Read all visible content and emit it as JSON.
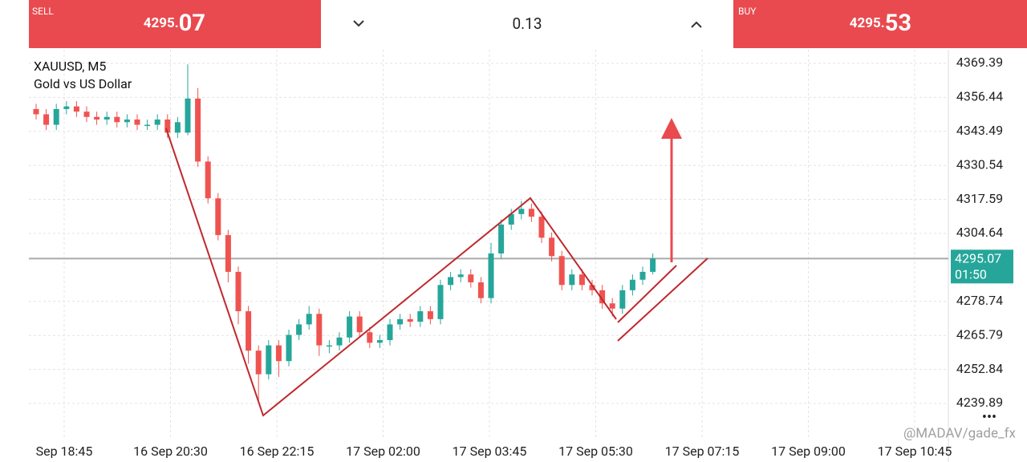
{
  "header": {
    "sell": {
      "label": "SELL",
      "price_small": "4295.",
      "price_big": "07"
    },
    "volume": "0.13",
    "buy": {
      "label": "BUY",
      "price_small": "4295.",
      "price_big": "53"
    }
  },
  "chart_data": {
    "type": "candlestick",
    "title": "XAUUSD, M5",
    "subtitle": "Gold vs US Dollar",
    "xlabels": [
      "Sep 18:45",
      "16 Sep 20:30",
      "16 Sep 22:15",
      "17 Sep 02:00",
      "17 Sep 03:45",
      "17 Sep 05:30",
      "17 Sep 07:15",
      "17 Sep 09:00",
      "17 Sep 10:45"
    ],
    "up_color": "#26a69a",
    "down_color": "#ef5350",
    "grid": true,
    "ylim": [
      4227.06,
      4374.58
    ],
    "yticks": [
      4369.39,
      4356.44,
      4343.49,
      4330.54,
      4317.59,
      4304.64,
      4278.74,
      4265.79,
      4252.84,
      4239.89
    ],
    "price_line": {
      "value": 4295.07,
      "label": "4295.07",
      "timer": "01:50"
    },
    "open": [
      4352,
      4350,
      4346,
      4352,
      4353,
      4351,
      4349,
      4348,
      4349,
      4347,
      4348,
      4346,
      4346,
      4348,
      4343,
      4343,
      4356,
      4332,
      4318,
      4304,
      4290,
      4275,
      4260,
      4251,
      4262,
      4256,
      4266,
      4270,
      4274,
      4262,
      4262,
      4265,
      4273,
      4267,
      4263,
      4264,
      4270,
      4272,
      4271,
      4275,
      4272,
      4285,
      4288,
      4289,
      4286,
      4280,
      4297,
      4308,
      4312,
      4314,
      4311,
      4303,
      4296,
      4285,
      4289,
      4285,
      4283,
      4278,
      4276,
      4283,
      4287,
      4290
    ],
    "high": [
      4354,
      4352,
      4354,
      4355,
      4355,
      4353,
      4351,
      4351,
      4351,
      4350,
      4350,
      4348,
      4350,
      4350,
      4349,
      4369,
      4360,
      4334,
      4320,
      4306,
      4292,
      4277,
      4262,
      4264,
      4264,
      4268,
      4272,
      4277,
      4276,
      4264,
      4267,
      4275,
      4275,
      4269,
      4266,
      4272,
      4274,
      4274,
      4277,
      4277,
      4287,
      4290,
      4291,
      4291,
      4288,
      4301,
      4310,
      4314,
      4317,
      4316,
      4313,
      4305,
      4298,
      4291,
      4291,
      4287,
      4285,
      4280,
      4285,
      4289,
      4292,
      4297
    ],
    "low": [
      4348,
      4344,
      4344,
      4350,
      4349,
      4347,
      4346,
      4346,
      4345,
      4345,
      4344,
      4344,
      4344,
      4341,
      4341,
      4342,
      4330,
      4316,
      4302,
      4286,
      4270,
      4255,
      4240,
      4249,
      4250,
      4254,
      4264,
      4268,
      4258,
      4259,
      4260,
      4263,
      4265,
      4261,
      4261,
      4262,
      4268,
      4269,
      4269,
      4270,
      4270,
      4283,
      4286,
      4284,
      4278,
      4278,
      4295,
      4306,
      4310,
      4309,
      4301,
      4294,
      4283,
      4283,
      4283,
      4281,
      4276,
      4273,
      4274,
      4281,
      4285,
      4289
    ],
    "close": [
      4350,
      4346,
      4352,
      4353,
      4351,
      4349,
      4348,
      4349,
      4347,
      4348,
      4346,
      4346,
      4348,
      4343,
      4347,
      4356,
      4332,
      4318,
      4304,
      4290,
      4275,
      4260,
      4251,
      4262,
      4256,
      4266,
      4270,
      4274,
      4262,
      4262,
      4265,
      4273,
      4267,
      4263,
      4264,
      4270,
      4272,
      4271,
      4275,
      4272,
      4285,
      4288,
      4289,
      4286,
      4280,
      4297,
      4308,
      4312,
      4314,
      4311,
      4303,
      4296,
      4285,
      4289,
      4285,
      4283,
      4278,
      4276,
      4283,
      4287,
      4290,
      4295.07
    ]
  },
  "watermark": "@MADAV/gade_fx"
}
